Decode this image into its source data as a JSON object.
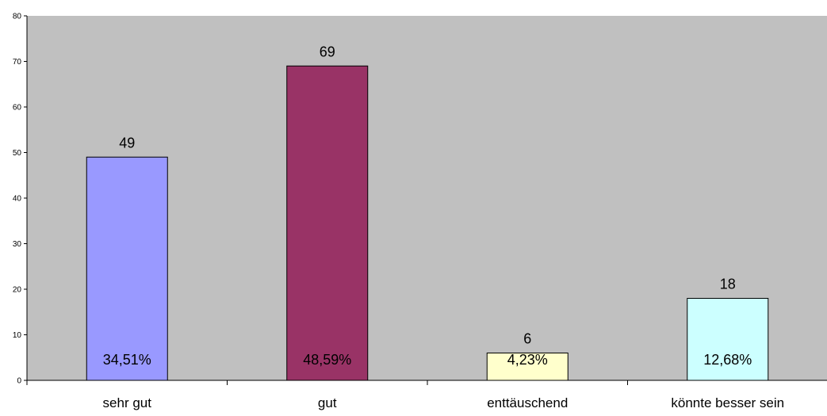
{
  "chart_data": {
    "type": "bar",
    "categories": [
      "sehr gut",
      "gut",
      "enttäuschend",
      "könnte besser sein"
    ],
    "values": [
      49,
      69,
      6,
      18
    ],
    "percent_labels": [
      "34,51%",
      "48,59%",
      "4,23%",
      "12,68%"
    ],
    "y_ticks": [
      "0",
      "10",
      "20",
      "30",
      "40",
      "50",
      "60",
      "70",
      "80"
    ],
    "ylim": [
      0,
      80
    ],
    "grid": false,
    "legend": "none",
    "colors": {
      "plot_background": "#c0c0c0",
      "bars": [
        "#9999ff",
        "#993366",
        "#ffffcc",
        "#ccffff"
      ],
      "bar_stroke": "#000000"
    }
  }
}
